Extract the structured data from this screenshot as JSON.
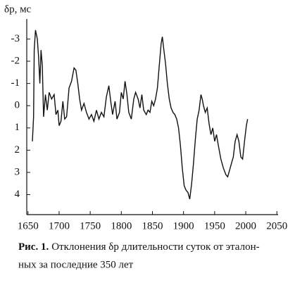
{
  "chart_data": {
    "type": "line",
    "ylabel": "δp, мс",
    "caption_label": "Рис. 1.",
    "caption_lines": [
      "Отклонения δp длительности суток от эталон-",
      "ных за последние 350 лет"
    ],
    "xlim": [
      1648,
      2052
    ],
    "xticks": [
      1650,
      1700,
      1750,
      1800,
      1850,
      1900,
      1950,
      2000,
      2050
    ],
    "ylim": [
      4.9,
      -3.9
    ],
    "yticks": [
      -3,
      -2,
      -1,
      0,
      1,
      2,
      3,
      4
    ],
    "series": [
      {
        "color": "#111111",
        "x": [
          1657,
          1659,
          1660,
          1662,
          1665,
          1667,
          1669,
          1671,
          1673,
          1675,
          1678,
          1681,
          1684,
          1688,
          1692,
          1695,
          1698,
          1700,
          1703,
          1706,
          1709,
          1712,
          1716,
          1720,
          1724,
          1727,
          1730,
          1733,
          1736,
          1740,
          1744,
          1748,
          1752,
          1756,
          1760,
          1764,
          1768,
          1772,
          1776,
          1780,
          1783,
          1786,
          1790,
          1793,
          1797,
          1800,
          1803,
          1806,
          1809,
          1812,
          1816,
          1820,
          1823,
          1827,
          1830,
          1833,
          1836,
          1840,
          1843,
          1846,
          1849,
          1852,
          1855,
          1858,
          1861,
          1864,
          1866,
          1868,
          1871,
          1874,
          1877,
          1880,
          1883,
          1886,
          1889,
          1892,
          1895,
          1898,
          1901,
          1904,
          1907,
          1910,
          1913,
          1916,
          1919,
          1922,
          1925,
          1928,
          1930,
          1932,
          1935,
          1938,
          1941,
          1944,
          1947,
          1950,
          1953,
          1956,
          1960,
          1964,
          1968,
          1971,
          1974,
          1977,
          1980,
          1983,
          1986,
          1989,
          1992,
          1995,
          1998,
          2001,
          2003
        ],
        "values": [
          1.6,
          0.5,
          -2.5,
          -3.4,
          -3.0,
          -2.2,
          -1.0,
          -2.5,
          -1.8,
          0.5,
          -0.5,
          0.2,
          -0.6,
          -0.3,
          -0.5,
          0.4,
          0.2,
          0.9,
          0.7,
          -0.2,
          0.6,
          0.5,
          -0.8,
          -1.1,
          -1.7,
          -1.6,
          -1.0,
          -0.3,
          0.2,
          -0.1,
          0.3,
          0.6,
          0.4,
          0.7,
          0.2,
          0.6,
          0.3,
          0.5,
          -0.4,
          -0.9,
          -0.2,
          0.4,
          -0.2,
          0.6,
          0.3,
          -0.6,
          -0.3,
          -1.1,
          -0.5,
          0.3,
          0.6,
          -0.3,
          -0.6,
          -0.3,
          0.1,
          -0.5,
          0.2,
          0.4,
          0.2,
          0.3,
          -0.2,
          0.0,
          -0.3,
          -0.8,
          -1.8,
          -2.8,
          -3.1,
          -2.6,
          -1.9,
          -1.0,
          -0.3,
          0.1,
          0.3,
          0.4,
          0.6,
          1.0,
          1.8,
          2.8,
          3.6,
          3.8,
          3.9,
          4.2,
          3.5,
          2.6,
          1.5,
          0.6,
          0.2,
          -0.5,
          -0.3,
          0.0,
          0.3,
          0.1,
          0.8,
          1.3,
          1.0,
          1.6,
          1.3,
          1.8,
          2.4,
          2.8,
          3.1,
          3.2,
          2.9,
          2.6,
          2.3,
          1.6,
          1.3,
          1.6,
          2.3,
          2.4,
          1.6,
          0.9,
          0.6
        ]
      }
    ]
  }
}
